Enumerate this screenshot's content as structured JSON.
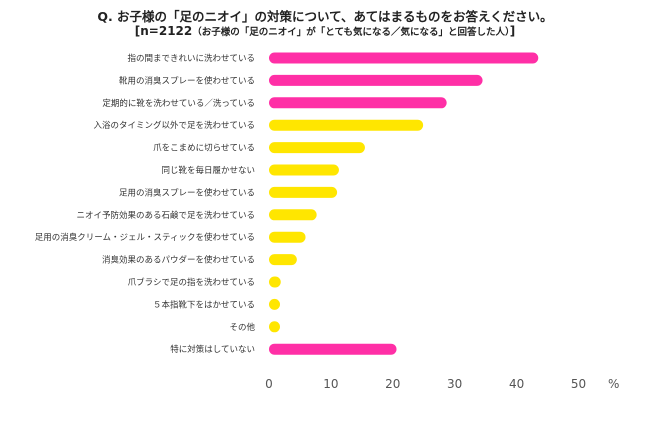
{
  "chart_data": {
    "type": "bar",
    "orientation": "horizontal",
    "title": "Q. お子様の「足のニオイ」の対策について、あてはまるものをお答えください。",
    "subtitle": "[n=2122",
    "subtitle_note": "（お子様の「足のニオイ」が「とても気になる／気になる」と回答した人）",
    "subtitle_end": "]",
    "unit": "%",
    "xlim": [
      0,
      50
    ],
    "xticks": [
      "0",
      "10",
      "20",
      "30",
      "40",
      "50"
    ],
    "grid": false,
    "categories": [
      "指の間まできれいに洗わせている",
      "靴用の消臭スプレーを使わせている",
      "定期的に靴を洗わせている／洗っている",
      "入浴のタイミング以外で足を洗わせている",
      "爪をこまめに切らせている",
      "同じ靴を毎日履かせない",
      "足用の消臭スプレーを使わせている",
      "ニオイ予防効果のある石鹸で足を洗わせている",
      "足用の消臭クリーム・ジェル・スティックを使わせている",
      "消臭効果のあるパウダーを使わせている",
      "爪ブラシで足の指を洗わせている",
      "５本指靴下をはかせている",
      "その他",
      "特に対策はしていない"
    ],
    "values": [
      43.5,
      34.5,
      28.7,
      24.9,
      15.5,
      11.3,
      11.0,
      7.7,
      5.9,
      4.5,
      1.9,
      1.5,
      1.5,
      20.6
    ],
    "colors": [
      "#ff2fa6",
      "#ff2fa6",
      "#ff2fa6",
      "#ffe600",
      "#ffe600",
      "#ffe600",
      "#ffe600",
      "#ffe600",
      "#ffe600",
      "#ffe600",
      "#ffe600",
      "#ffe600",
      "#ffe600",
      "#ff2fa6"
    ]
  }
}
